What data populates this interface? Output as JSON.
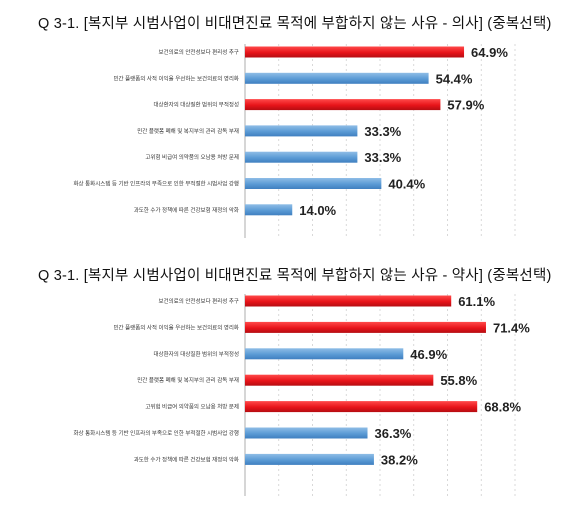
{
  "chart_data": [
    {
      "type": "bar",
      "orientation": "horizontal",
      "title": "Q 3-1. [복지부 시범사업이 비대면진료 목적에 부합하지 않는 사유 - 의사] (중복선택)",
      "categories": [
        "보건의료의 안전성보다 편리성 추구",
        "민간 플랫폼의 사적 이익을 우선하는 보건의료의 영리화",
        "대상환자의 대상질환 범위의 부적정성",
        "민간 플랫폼 폐해 및 복지부의 관리 감독 부재",
        "고위험 비급여 의약품의 오남용 처방 문제",
        "화상 통화시스템 등 기반 인프라의 부족으로 인한 부적절한 시범사업 강행",
        "과도한 수가 정책에 따른 건강보험 재정의 악화"
      ],
      "values": [
        64.9,
        54.4,
        57.9,
        33.3,
        33.3,
        40.4,
        14.0
      ],
      "value_labels": [
        "64.9%",
        "54.4%",
        "57.9%",
        "33.3%",
        "33.3%",
        "40.4%",
        "14.0%"
      ],
      "highlight": [
        true,
        false,
        true,
        false,
        false,
        false,
        false
      ],
      "xlim": [
        0,
        80
      ],
      "grid": true
    },
    {
      "type": "bar",
      "orientation": "horizontal",
      "title": "Q 3-1. [복지부 시범사업이 비대면진료 목적에 부합하지 않는 사유 - 약사] (중복선택)",
      "categories": [
        "보건의료의 안전성보다 편리성 추구",
        "민간 플랫폼의 사적 이익을 우선하는 보건의료의 영리화",
        "대상환자의 대상질환 범위의 부적정성",
        "민간 플랫폼 폐해 및 복지부의 관리 감독 부재",
        "고위험 비급여 의약품의 오남용 처방 문제",
        "화상 통화시스템 등 기반 인프라의 부족으로 인한 부적절한 시범사업 강행",
        "과도한 수가 정책에 따른 건강보험 재정의 악화"
      ],
      "values": [
        61.1,
        71.4,
        46.9,
        55.8,
        68.8,
        36.3,
        38.2
      ],
      "value_labels": [
        "61.1%",
        "71.4%",
        "46.9%",
        "55.8%",
        "68.8%",
        "36.3%",
        "38.2%"
      ],
      "highlight": [
        true,
        true,
        false,
        true,
        true,
        false,
        false
      ],
      "xlim": [
        0,
        80
      ],
      "grid": true
    }
  ],
  "colors": {
    "highlight_bar": "#e8141a",
    "normal_bar": "#5b9bd5"
  }
}
